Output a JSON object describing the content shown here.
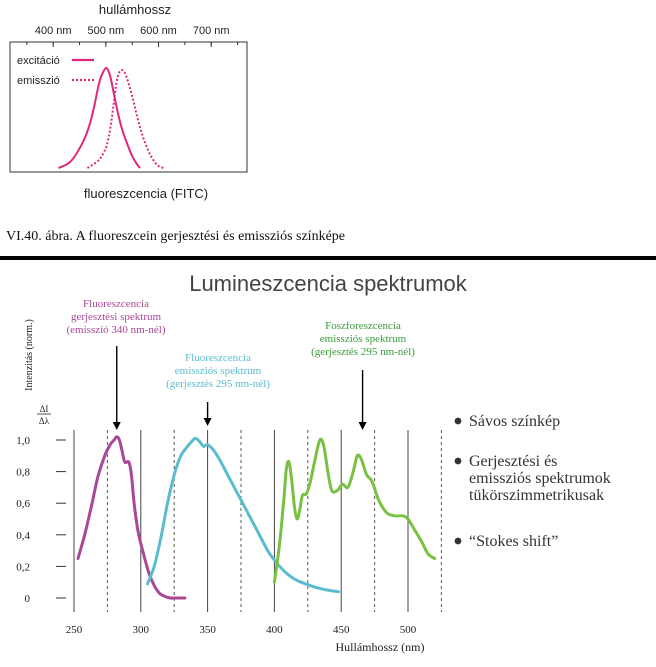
{
  "chart_data": [
    {
      "type": "line",
      "title": "",
      "xlabel": "fluoreszcencia (FITC)",
      "top_axis_label": "hullámhossz",
      "xticks": [
        "400 nm",
        "500 nm",
        "600 nm",
        "700 nm"
      ],
      "xtick_values": [
        400,
        500,
        600,
        700
      ],
      "xlim": [
        350,
        750
      ],
      "ylim": [
        0,
        1
      ],
      "legend_position": "top-left",
      "series": [
        {
          "name": "excitáció",
          "color": "#e0287a",
          "style": "solid",
          "x": [
            410,
            430,
            445,
            460,
            470,
            478,
            485,
            490,
            495,
            500,
            505,
            510,
            520,
            530,
            540,
            550,
            560,
            565
          ],
          "y": [
            0.0,
            0.05,
            0.15,
            0.3,
            0.45,
            0.62,
            0.8,
            0.9,
            0.96,
            1.0,
            0.97,
            0.88,
            0.62,
            0.4,
            0.25,
            0.12,
            0.03,
            0.0
          ]
        },
        {
          "name": "emisszió",
          "color": "#e0287a",
          "style": "dotted",
          "x": [
            465,
            480,
            490,
            500,
            505,
            510,
            515,
            520,
            525,
            530,
            535,
            540,
            550,
            560,
            570,
            580,
            590,
            600,
            610
          ],
          "y": [
            0.0,
            0.05,
            0.1,
            0.2,
            0.3,
            0.45,
            0.65,
            0.85,
            0.95,
            0.98,
            0.96,
            0.9,
            0.72,
            0.5,
            0.32,
            0.18,
            0.08,
            0.02,
            0.0
          ]
        }
      ]
    },
    {
      "type": "line",
      "title": "Lumineszcencia spektrumok",
      "xlabel": "Hullámhossz (nm)",
      "ylabel": "Intenzitás (norm.)",
      "ylabel_fraction_num": "ΔI",
      "ylabel_fraction_den": "Δλ",
      "xticks": [
        250,
        300,
        350,
        400,
        450,
        500
      ],
      "yticks": [
        0,
        0.2,
        0.4,
        0.6,
        0.8,
        1.0
      ],
      "ytick_labels": [
        "0",
        "0,2",
        "0,4",
        "0,6",
        "0,8",
        "1,0"
      ],
      "xlim": [
        240,
        530
      ],
      "ylim": [
        0,
        1.1
      ],
      "grid_solid_x": [
        250,
        300,
        350,
        400,
        450,
        500
      ],
      "grid_dashed_x": [
        275,
        325,
        375,
        425,
        475,
        525
      ],
      "series": [
        {
          "color": "#a94897",
          "x": [
            253,
            258,
            263,
            268,
            273,
            277,
            280,
            282,
            284,
            286,
            288,
            291,
            293,
            295,
            298,
            302,
            306,
            310,
            314,
            318,
            322,
            326,
            330,
            333
          ],
          "y": [
            0.25,
            0.4,
            0.58,
            0.77,
            0.9,
            0.97,
            1.0,
            1.02,
            1.0,
            0.93,
            0.86,
            0.86,
            0.78,
            0.6,
            0.42,
            0.28,
            0.16,
            0.08,
            0.03,
            0.01,
            0.0,
            0.0,
            0.0,
            0.0
          ]
        },
        {
          "color": "#5bbccf",
          "x": [
            305,
            310,
            315,
            320,
            325,
            330,
            335,
            338,
            341,
            344,
            347,
            350,
            355,
            360,
            365,
            370,
            375,
            380,
            385,
            390,
            395,
            400,
            405,
            410,
            415,
            420,
            430,
            440,
            448
          ],
          "y": [
            0.09,
            0.2,
            0.38,
            0.6,
            0.78,
            0.9,
            0.96,
            0.99,
            1.01,
            0.99,
            0.96,
            0.97,
            0.93,
            0.86,
            0.78,
            0.7,
            0.62,
            0.54,
            0.46,
            0.38,
            0.3,
            0.24,
            0.19,
            0.15,
            0.12,
            0.1,
            0.07,
            0.05,
            0.04
          ]
        },
        {
          "color": "#7ac143",
          "x": [
            400,
            404,
            407,
            409,
            411,
            413,
            415,
            417,
            419,
            421,
            424,
            427,
            430,
            434,
            437,
            440,
            443,
            447,
            451,
            455,
            459,
            462,
            465,
            469,
            473,
            478,
            484,
            490,
            496,
            500,
            505,
            510,
            515,
            520
          ],
          "y": [
            0.1,
            0.35,
            0.62,
            0.82,
            0.86,
            0.74,
            0.58,
            0.5,
            0.56,
            0.65,
            0.66,
            0.74,
            0.86,
            1.0,
            0.96,
            0.8,
            0.68,
            0.68,
            0.72,
            0.7,
            0.8,
            0.9,
            0.88,
            0.78,
            0.74,
            0.62,
            0.54,
            0.52,
            0.52,
            0.5,
            0.43,
            0.36,
            0.28,
            0.25
          ]
        }
      ],
      "annotations": [
        {
          "lines": [
            "Fluoreszcencia",
            "gerjesztési spektrum",
            "(emisszió 340 nm-nél)"
          ],
          "color": "#a94897",
          "arrow_x": 282
        },
        {
          "lines": [
            "Fluoreszcencia",
            "emissziós spektrum",
            "(gerjesztés 295 nm-nél)"
          ],
          "color": "#5bbccf",
          "arrow_x": 350
        },
        {
          "lines": [
            "Foszforeszcencia",
            "emissziós spektrum",
            "(gerjesztés 295 nm-nél)"
          ],
          "color": "#3a9a3a",
          "arrow_x": 466
        }
      ]
    }
  ],
  "caption": "VI.40. ábra. A fluoreszcein gerjesztési és emissziós színképe",
  "bullets": [
    {
      "lines": [
        "Sávos színkép"
      ]
    },
    {
      "lines": [
        "Gerjesztési és",
        "emissziós spektrumok",
        "tükörszimmetrikusak"
      ]
    },
    {
      "lines": [
        "“Stokes shift”"
      ]
    }
  ]
}
